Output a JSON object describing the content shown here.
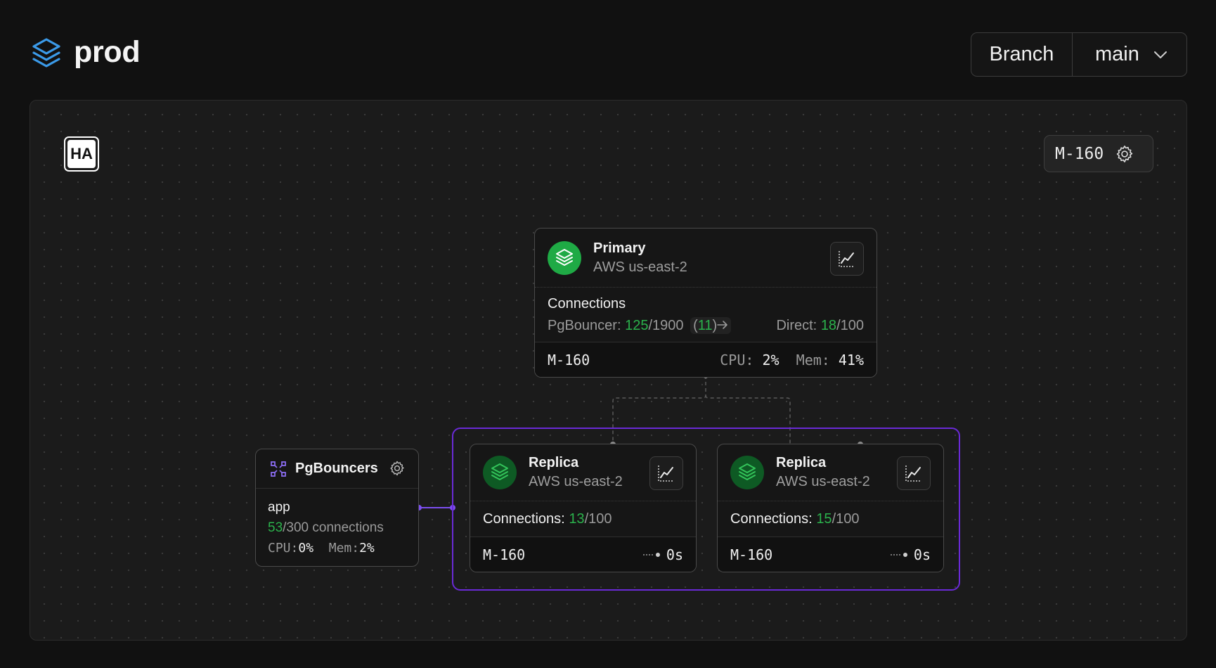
{
  "header": {
    "title": "prod",
    "branch_label": "Branch",
    "branch_value": "main"
  },
  "canvas": {
    "ha_badge": "HA",
    "compute_size": "M-160"
  },
  "primary": {
    "title": "Primary",
    "region": "AWS us-east-2",
    "connections_title": "Connections",
    "pgbouncer_label": "PgBouncer:",
    "pgbouncer_used": "125",
    "pgbouncer_max": "/1900",
    "pgbouncer_paren_open": "(",
    "pgbouncer_extra": "11",
    "pgbouncer_paren_close": ")",
    "direct_label": "Direct:",
    "direct_used": "18",
    "direct_max": "/100",
    "size": "M-160",
    "cpu_label": "CPU:",
    "cpu_value": "2%",
    "mem_label": "Mem:",
    "mem_value": "41%"
  },
  "replicas": [
    {
      "title": "Replica",
      "region": "AWS us-east-2",
      "connections_label": "Connections:",
      "connections_used": "13",
      "connections_max": "/100",
      "size": "M-160",
      "lag": "0s"
    },
    {
      "title": "Replica",
      "region": "AWS us-east-2",
      "connections_label": "Connections:",
      "connections_used": "15",
      "connections_max": "/100",
      "size": "M-160",
      "lag": "0s"
    }
  ],
  "pgbouncers": {
    "title": "PgBouncers",
    "pool": "app",
    "connections_used": "53",
    "connections_text": "/300 connections",
    "cpu_label": "CPU:",
    "cpu_value": "0%",
    "mem_label": "Mem:",
    "mem_value": "2%"
  },
  "colors": {
    "background": "#111111",
    "canvas": "#1b1b1b",
    "accent_green": "#2bb24c",
    "replica_group_border": "#6a2ad6",
    "logo_blue": "#3b9ae8"
  },
  "icons": [
    "layers-logo-icon",
    "chevron-down-icon",
    "gear-icon",
    "database-icon",
    "chart-icon",
    "arrow-right-icon",
    "network-icon",
    "lag-dots-icon"
  ]
}
